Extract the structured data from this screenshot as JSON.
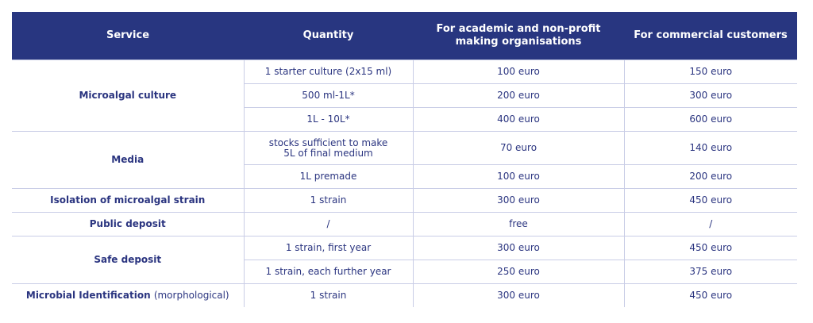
{
  "header": [
    "Service",
    "Quantity",
    "For academic and non-profit making organisations",
    "For commercial customers"
  ],
  "colors": {
    "header_bg": "#283680",
    "text": "#2b3580",
    "border": "#c9cde6"
  },
  "groups": [
    {
      "service": "Microalgal culture",
      "rows": [
        {
          "quantity": "1 starter culture (2x15 ml)",
          "academic": "100 euro",
          "commercial": "150 euro"
        },
        {
          "quantity": "500 ml-1L*",
          "academic": "200 euro",
          "commercial": "300 euro"
        },
        {
          "quantity": "1L - 10L*",
          "academic": "400 euro",
          "commercial": "600 euro"
        }
      ]
    },
    {
      "service": "Media",
      "rows": [
        {
          "quantity": "stocks sufficient to make 5L of final medium",
          "academic": "70 euro",
          "commercial": "140 euro"
        },
        {
          "quantity": "1L premade",
          "academic": "100 euro",
          "commercial": "200 euro"
        }
      ]
    },
    {
      "service": "Isolation of microalgal strain",
      "rows": [
        {
          "quantity": "1 strain",
          "academic": "300 euro",
          "commercial": "450 euro"
        }
      ]
    },
    {
      "service": "Public deposit",
      "rows": [
        {
          "quantity": "/",
          "academic": "free",
          "commercial": "/"
        }
      ]
    },
    {
      "service": "Safe deposit",
      "rows": [
        {
          "quantity": "1 strain, first year",
          "academic": "300 euro",
          "commercial": "450 euro"
        },
        {
          "quantity": "1 strain, each further year",
          "academic": "250 euro",
          "commercial": "375 euro"
        }
      ]
    },
    {
      "service": "Microbial Identification",
      "service_note": "(morphological)",
      "rows": [
        {
          "quantity": "1 strain",
          "academic": "300 euro",
          "commercial": "450 euro"
        }
      ]
    }
  ]
}
